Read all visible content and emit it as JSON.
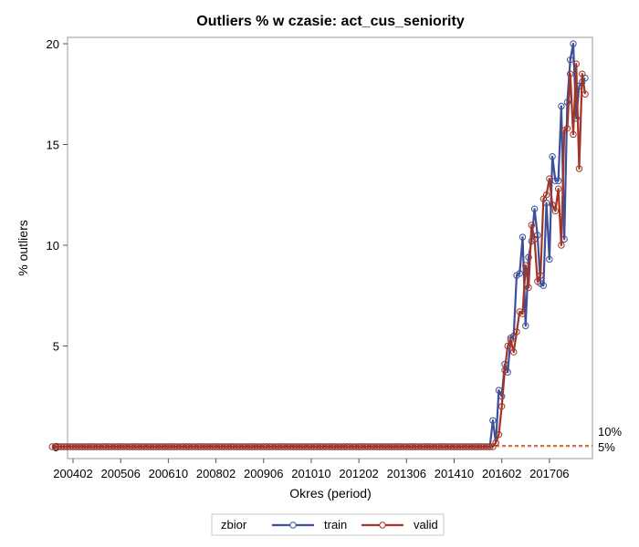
{
  "chart_data": {
    "type": "line",
    "title": "Outliers % w czasie: act_cus_seniority",
    "xlabel": "Okres (period)",
    "ylabel": "% outliers",
    "ylim": [
      0,
      20
    ],
    "y_ticks": [
      0,
      5,
      10,
      15,
      20
    ],
    "x_tick_labels": [
      "200402",
      "200506",
      "200610",
      "200802",
      "200906",
      "201010",
      "201202",
      "201306",
      "201410",
      "201602",
      "201706"
    ],
    "grid": false,
    "reference_lines": [
      {
        "label": "10%",
        "color": "#d9723c"
      },
      {
        "label": "5%",
        "color": "#d9723c"
      }
    ],
    "legend": {
      "title": "zbior",
      "placement": "bottom",
      "entries": [
        {
          "name": "train",
          "color": "#3c4f9a"
        },
        {
          "name": "valid",
          "color": "#a23528"
        }
      ]
    },
    "x_periods": {
      "start_year": 2004,
      "start_month": 2,
      "end_year": 2018,
      "end_month": 6
    },
    "series": [
      {
        "name": "train",
        "color": "#3c4f9a",
        "values": [
          0,
          0,
          0,
          0,
          0,
          0,
          0,
          0,
          0,
          0,
          0,
          0,
          0,
          0,
          0,
          0,
          0,
          0,
          0,
          0,
          0,
          0,
          0,
          0,
          0,
          0,
          0,
          0,
          0,
          0,
          0,
          0,
          0,
          0,
          0,
          0,
          0,
          0,
          0,
          0,
          0,
          0,
          0,
          0,
          0,
          0,
          0,
          0,
          0,
          0,
          0,
          0,
          0,
          0,
          0,
          0,
          0,
          0,
          0,
          0,
          0,
          0,
          0,
          0,
          0,
          0,
          0,
          0,
          0,
          0,
          0,
          0,
          0,
          0,
          0,
          0,
          0,
          0,
          0,
          0,
          0,
          0,
          0,
          0,
          0,
          0,
          0,
          0,
          0,
          0,
          0,
          0,
          0,
          0,
          0,
          0,
          0,
          0,
          0,
          0,
          0,
          0,
          0,
          0,
          0,
          0,
          0,
          0,
          0,
          0,
          0,
          0,
          0,
          0,
          0,
          0,
          0,
          0,
          0,
          0,
          0,
          0,
          0,
          0,
          0,
          0,
          0,
          0,
          0,
          0,
          0,
          0,
          0,
          0,
          0,
          0,
          0,
          0,
          0,
          0,
          0,
          0,
          0,
          0,
          0,
          0,
          0,
          1.3,
          0.2,
          2.8,
          2.5,
          4.1,
          3.7,
          5.4,
          5.5,
          8.5,
          8.6,
          10.4,
          6.0,
          9.4,
          10.2,
          11.8,
          10.5,
          8.1,
          8.0,
          12.1,
          9.3,
          14.4,
          13.2,
          13.2,
          16.9,
          10.3,
          17.1,
          19.2,
          20.0,
          16.3,
          17.9,
          18.1,
          18.3
        ]
      },
      {
        "name": "valid",
        "color": "#a23528",
        "values": [
          0,
          0,
          0,
          0,
          0,
          0,
          0,
          0,
          0,
          0,
          0,
          0,
          0,
          0,
          0,
          0,
          0,
          0,
          0,
          0,
          0,
          0,
          0,
          0,
          0,
          0,
          0,
          0,
          0,
          0,
          0,
          0,
          0,
          0,
          0,
          0,
          0,
          0,
          0,
          0,
          0,
          0,
          0,
          0,
          0,
          0,
          0,
          0,
          0,
          0,
          0,
          0,
          0,
          0,
          0,
          0,
          0,
          0,
          0,
          0,
          0,
          0,
          0,
          0,
          0,
          0,
          0,
          0,
          0,
          0,
          0,
          0,
          0,
          0,
          0,
          0,
          0,
          0,
          0,
          0,
          0,
          0,
          0,
          0,
          0,
          0,
          0,
          0,
          0,
          0,
          0,
          0,
          0,
          0,
          0,
          0,
          0,
          0,
          0,
          0,
          0,
          0,
          0,
          0,
          0,
          0,
          0,
          0,
          0,
          0,
          0,
          0,
          0,
          0,
          0,
          0,
          0,
          0,
          0,
          0,
          0,
          0,
          0,
          0,
          0,
          0,
          0,
          0,
          0,
          0,
          0,
          0,
          0,
          0,
          0,
          0,
          0,
          0,
          0,
          0,
          0,
          0,
          0,
          0,
          0,
          0,
          0,
          0.0,
          0.0,
          0.2,
          0.6,
          2.0,
          3.8,
          5.0,
          5.3,
          4.7,
          5.7,
          6.7,
          6.6,
          9.0,
          7.9,
          11.0,
          10.3,
          8.2,
          8.5,
          12.3,
          12.5,
          13.3,
          12.0,
          11.7,
          12.8,
          10.0,
          15.7,
          15.8,
          18.5,
          15.5,
          19.0,
          13.8,
          18.5,
          17.5
        ]
      }
    ]
  }
}
